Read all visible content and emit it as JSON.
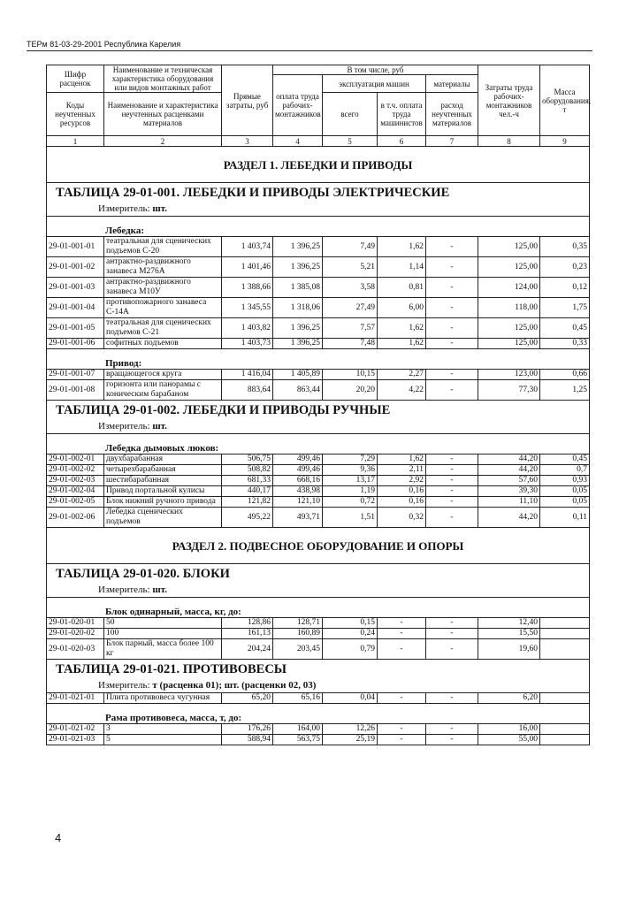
{
  "running_head": "ТЕРм 81-03-29-2001 Республика Карелия",
  "page_number": "4",
  "header": {
    "c1_top": "Шифр расценок",
    "c1_bottom": "Коды неучтенных ресурсов",
    "c2_top": "Наименование и техническая характеристика оборудования или видов монтажных работ",
    "c2_bottom": "Наименование и характеристика неучтенных расценками материалов",
    "c3": "Прямые затраты, руб",
    "incl": "В том числе, руб",
    "exploit": "эксплуатация машин",
    "materials": "материалы",
    "c4": "оплата труда рабочих-монтажников",
    "c5": "всего",
    "c6": "в т.ч. оплата труда машинистов",
    "c7": "расход неучтенных материалов",
    "c8": "Затраты труда рабочих-монтажников чел.-ч",
    "c9": "Масса оборудования, т",
    "nums": [
      "1",
      "2",
      "3",
      "4",
      "5",
      "6",
      "7",
      "8",
      "9"
    ]
  },
  "blocks": [
    {
      "type": "section",
      "text": "РАЗДЕЛ 1. ЛЕБЕДКИ И ПРИВОДЫ"
    },
    {
      "type": "title",
      "text": "ТАБЛИЦА 29-01-001. ЛЕБЕДКИ И ПРИВОДЫ ЭЛЕКТРИЧЕСКИЕ"
    },
    {
      "type": "meter",
      "label": "Измеритель: ",
      "value": "шт."
    },
    {
      "type": "group",
      "text": "Лебедка:"
    },
    {
      "type": "row",
      "cells": [
        "29-01-001-01",
        "театральная для сценических подъемов С-20",
        "1 403,74",
        "1 396,25",
        "7,49",
        "1,62",
        "-",
        "125,00",
        "0,35"
      ]
    },
    {
      "type": "row",
      "cells": [
        "29-01-001-02",
        "антрактно-раздвижного занавеса М276А",
        "1 401,46",
        "1 396,25",
        "5,21",
        "1,14",
        "-",
        "125,00",
        "0,23"
      ]
    },
    {
      "type": "row",
      "cells": [
        "29-01-001-03",
        "антрактно-раздвижного занавеса М10У",
        "1 388,66",
        "1 385,08",
        "3,58",
        "0,81",
        "-",
        "124,00",
        "0,12"
      ]
    },
    {
      "type": "row",
      "cells": [
        "29-01-001-04",
        "противопожарного занавеса С-14А",
        "1 345,55",
        "1 318,06",
        "27,49",
        "6,00",
        "-",
        "118,00",
        "1,75"
      ]
    },
    {
      "type": "row",
      "cells": [
        "29-01-001-05",
        "театральная для сценических подъемов С-21",
        "1 403,82",
        "1 396,25",
        "7,57",
        "1,62",
        "-",
        "125,00",
        "0,45"
      ]
    },
    {
      "type": "row",
      "cells": [
        "29-01-001-06",
        "софитных подъемов",
        "1 403,73",
        "1 396,25",
        "7,48",
        "1,62",
        "-",
        "125,00",
        "0,33"
      ]
    },
    {
      "type": "group",
      "text": "Привод:"
    },
    {
      "type": "row",
      "cells": [
        "29-01-001-07",
        "вращающегося круга",
        "1 416,04",
        "1 405,89",
        "10,15",
        "2,27",
        "-",
        "123,00",
        "0,66"
      ]
    },
    {
      "type": "row",
      "cells": [
        "29-01-001-08",
        "горизонта или панорамы с коническим барабаном",
        "883,64",
        "863,44",
        "20,20",
        "4,22",
        "-",
        "77,30",
        "1,25"
      ]
    },
    {
      "type": "title",
      "text": "ТАБЛИЦА 29-01-002. ЛЕБЕДКИ И ПРИВОДЫ РУЧНЫЕ"
    },
    {
      "type": "meter",
      "label": "Измеритель: ",
      "value": "шт."
    },
    {
      "type": "group",
      "text": "Лебедка дымовых люков:"
    },
    {
      "type": "row",
      "cells": [
        "29-01-002-01",
        "двухбарабанная",
        "506,75",
        "499,46",
        "7,29",
        "1,62",
        "-",
        "44,20",
        "0,45"
      ]
    },
    {
      "type": "row",
      "cells": [
        "29-01-002-02",
        "четырехбарабанная",
        "508,82",
        "499,46",
        "9,36",
        "2,11",
        "-",
        "44,20",
        "0,7"
      ]
    },
    {
      "type": "row",
      "cells": [
        "29-01-002-03",
        "шестибарабанная",
        "681,33",
        "668,16",
        "13,17",
        "2,92",
        "-",
        "57,60",
        "0,93"
      ]
    },
    {
      "type": "row",
      "cells": [
        "29-01-002-04",
        "Привод портальной кулисы",
        "440,17",
        "438,98",
        "1,19",
        "0,16",
        "-",
        "39,30",
        "0,05"
      ]
    },
    {
      "type": "row",
      "cells": [
        "29-01-002-05",
        "Блок нижний ручного привода",
        "121,82",
        "121,10",
        "0,72",
        "0,16",
        "-",
        "11,10",
        "0,05"
      ]
    },
    {
      "type": "row",
      "cells": [
        "29-01-002-06",
        "Лебедка сценических подъемов",
        "495,22",
        "493,71",
        "1,51",
        "0,32",
        "-",
        "44,20",
        "0,11"
      ]
    },
    {
      "type": "section",
      "text": "РАЗДЕЛ 2. ПОДВЕСНОЕ ОБОРУДОВАНИЕ И ОПОРЫ"
    },
    {
      "type": "title",
      "text": "ТАБЛИЦА 29-01-020. БЛОКИ"
    },
    {
      "type": "meter",
      "label": "Измеритель: ",
      "value": "шт."
    },
    {
      "type": "group",
      "text": "Блок одинарный, масса, кг, до:"
    },
    {
      "type": "row",
      "cells": [
        "29-01-020-01",
        "50",
        "128,86",
        "128,71",
        "0,15",
        "-",
        "-",
        "12,40",
        ""
      ]
    },
    {
      "type": "row",
      "cells": [
        "29-01-020-02",
        "100",
        "161,13",
        "160,89",
        "0,24",
        "-",
        "-",
        "15,50",
        ""
      ]
    },
    {
      "type": "row",
      "cells": [
        "29-01-020-03",
        "Блок парный, масса более 100 кг",
        "204,24",
        "203,45",
        "0,79",
        "-",
        "-",
        "19,60",
        ""
      ]
    },
    {
      "type": "title",
      "text": "ТАБЛИЦА 29-01-021. ПРОТИВОВЕСЫ"
    },
    {
      "type": "meter",
      "label": "Измеритель: ",
      "value": "т (расценка 01); шт. (расценки 02, 03)"
    },
    {
      "type": "row",
      "cells": [
        "29-01-021-01",
        "Плита противовеса чугунная",
        "65,20",
        "65,16",
        "0,04",
        "-",
        "-",
        "6,20",
        ""
      ]
    },
    {
      "type": "group",
      "text": "Рама противовеса, масса, т, до:"
    },
    {
      "type": "row",
      "cells": [
        "29-01-021-02",
        "3",
        "176,26",
        "164,00",
        "12,26",
        "-",
        "-",
        "16,00",
        ""
      ]
    },
    {
      "type": "row",
      "cells": [
        "29-01-021-03",
        "5",
        "588,94",
        "563,75",
        "25,19",
        "-",
        "-",
        "55,00",
        ""
      ]
    }
  ]
}
